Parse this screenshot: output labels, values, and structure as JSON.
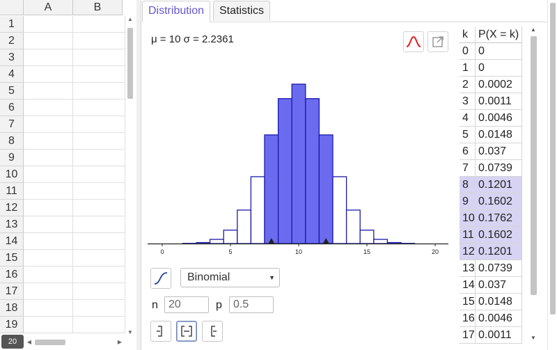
{
  "spreadsheet": {
    "columns": [
      "A",
      "B"
    ],
    "rows": [
      "1",
      "2",
      "3",
      "4",
      "5",
      "6",
      "7",
      "8",
      "9",
      "10",
      "11",
      "12",
      "13",
      "14",
      "15",
      "16",
      "17",
      "18",
      "19"
    ],
    "keyboard_label": "20"
  },
  "tabs": [
    {
      "label": "Distribution",
      "active": true
    },
    {
      "label": "Statistics",
      "active": false
    }
  ],
  "distribution": {
    "stats_line": "μ = 10 σ = 2.2361",
    "selected": "Binomial",
    "params": [
      {
        "label": "n",
        "value": "20"
      },
      {
        "label": "p",
        "value": "0.5"
      }
    ]
  },
  "colors": {
    "accent": "#6557d2",
    "bar_fill": "#6b6bf0",
    "bar_stroke": "#1a1aa8",
    "highlight_row": "#d6d3f3",
    "normal_icon": "#e02020"
  },
  "chart_data": {
    "type": "bar",
    "x": [
      0,
      1,
      2,
      3,
      4,
      5,
      6,
      7,
      8,
      9,
      10,
      11,
      12,
      13,
      14,
      15,
      16,
      17,
      18,
      19,
      20
    ],
    "values": [
      0,
      0,
      0.0002,
      0.0011,
      0.0046,
      0.0148,
      0.037,
      0.0739,
      0.1201,
      0.1602,
      0.1762,
      0.1602,
      0.1201,
      0.0739,
      0.037,
      0.0148,
      0.0046,
      0.0011,
      0.0002,
      0,
      0
    ],
    "highlighted_range": [
      8,
      12
    ],
    "xticks": [
      0,
      5,
      10,
      15,
      20
    ],
    "xlim": [
      -1,
      20.5
    ],
    "grid": false
  },
  "probability_table": {
    "headers": [
      "k",
      "P(X = k)"
    ],
    "rows": [
      {
        "k": "0",
        "p": "0",
        "hl": false
      },
      {
        "k": "1",
        "p": "0",
        "hl": false
      },
      {
        "k": "2",
        "p": "0.0002",
        "hl": false
      },
      {
        "k": "3",
        "p": "0.0011",
        "hl": false
      },
      {
        "k": "4",
        "p": "0.0046",
        "hl": false
      },
      {
        "k": "5",
        "p": "0.0148",
        "hl": false
      },
      {
        "k": "6",
        "p": "0.037",
        "hl": false
      },
      {
        "k": "7",
        "p": "0.0739",
        "hl": false
      },
      {
        "k": "8",
        "p": "0.1201",
        "hl": true
      },
      {
        "k": "9",
        "p": "0.1602",
        "hl": true
      },
      {
        "k": "10",
        "p": "0.1762",
        "hl": true
      },
      {
        "k": "11",
        "p": "0.1602",
        "hl": true
      },
      {
        "k": "12",
        "p": "0.1201",
        "hl": true
      },
      {
        "k": "13",
        "p": "0.0739",
        "hl": false
      },
      {
        "k": "14",
        "p": "0.037",
        "hl": false
      },
      {
        "k": "15",
        "p": "0.0148",
        "hl": false
      },
      {
        "k": "16",
        "p": "0.0046",
        "hl": false
      },
      {
        "k": "17",
        "p": "0.0011",
        "hl": false
      }
    ]
  },
  "icons": {
    "normal_overlay": "normal-curve-icon",
    "export": "export-icon",
    "cumulative": "cumulative-curve-icon",
    "left_sided": "left-sided-interval-icon",
    "interval": "two-sided-interval-icon",
    "right_sided": "right-sided-interval-icon"
  }
}
